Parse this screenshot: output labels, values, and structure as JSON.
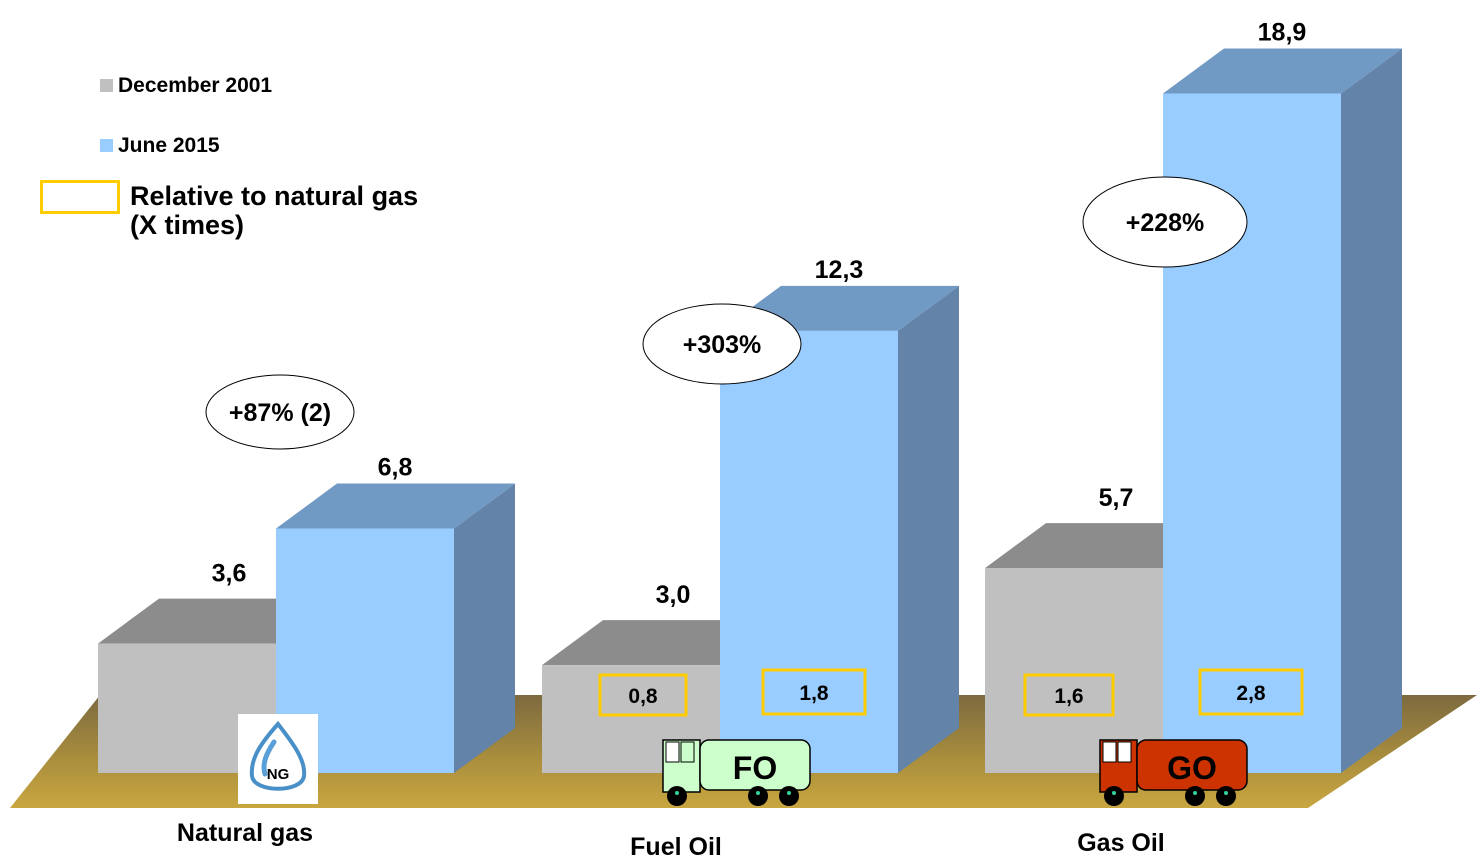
{
  "legend": {
    "dec2001": "December 2001",
    "jun2015": "June 2015",
    "relative": "Relative to natural gas",
    "relative2": "(X times)"
  },
  "colors": {
    "dec2001": "#c0c0c0",
    "jun2015": "#99ccff",
    "relative_box": "#ffcc00",
    "floor": "#c8a84b",
    "fo_truck": "#ccffcc",
    "go_truck": "#cc3300"
  },
  "chart_data": {
    "type": "bar",
    "categories": [
      "Natural gas",
      "Fuel Oil",
      "Gas Oil"
    ],
    "series": [
      {
        "name": "December 2001",
        "values": [
          3.6,
          3.0,
          5.7
        ],
        "labels": [
          "3,6",
          "3,0",
          "5,7"
        ]
      },
      {
        "name": "June 2015",
        "values": [
          6.8,
          12.3,
          18.9
        ],
        "labels": [
          "6,8",
          "12,3",
          "18,9"
        ]
      }
    ],
    "changes": [
      "+87% (2)",
      "+303%",
      "+228%"
    ],
    "relative_to_natural_gas": {
      "December 2001": [
        null,
        "0,8",
        "1,6"
      ],
      "June 2015": [
        null,
        "1,8",
        "2,8"
      ]
    },
    "icons": [
      "NG",
      "FO",
      "GO"
    ],
    "legend_position": "top-left",
    "grid": false
  }
}
